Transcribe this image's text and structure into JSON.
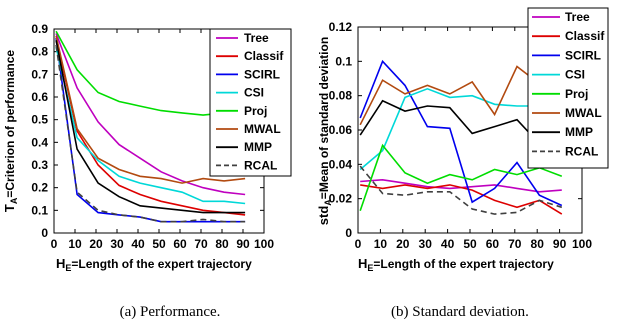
{
  "captions": [
    "(a) Performance.",
    "(b) Standard deviation."
  ],
  "chart_data": [
    {
      "type": "line",
      "ylabel_main": "T",
      "ylabel_sub": "A",
      "ylabel_rest": "=Criterion of performance",
      "xlabel_main": "H",
      "xlabel_sub": "E",
      "xlabel_rest": "=Length of the expert trajectory",
      "xlim": [
        0,
        100
      ],
      "ylim": [
        0,
        0.9
      ],
      "xticks": [
        "0",
        "10",
        "20",
        "30",
        "40",
        "50",
        "60",
        "70",
        "80",
        "90",
        "100"
      ],
      "yticks": [
        "0",
        "0.1",
        "0.2",
        "0.3",
        "0.4",
        "0.5",
        "0.6",
        "0.7",
        "0.8",
        "0.9"
      ],
      "x": [
        1,
        11,
        21,
        31,
        41,
        51,
        61,
        71,
        81,
        91
      ],
      "series": [
        {
          "name": "Tree",
          "color": "#bf00bf",
          "dash": "",
          "values": [
            0.88,
            0.64,
            0.49,
            0.39,
            0.33,
            0.27,
            0.23,
            0.2,
            0.18,
            0.17
          ]
        },
        {
          "name": "Classif",
          "color": "#dd0000",
          "dash": "",
          "values": [
            0.86,
            0.45,
            0.3,
            0.21,
            0.17,
            0.14,
            0.12,
            0.1,
            0.09,
            0.08
          ]
        },
        {
          "name": "SCIRL",
          "color": "#0000ee",
          "dash": "",
          "values": [
            0.86,
            0.17,
            0.09,
            0.08,
            0.07,
            0.05,
            0.05,
            0.05,
            0.05,
            0.05
          ]
        },
        {
          "name": "CSI",
          "color": "#00d8d8",
          "dash": "",
          "values": [
            0.82,
            0.42,
            0.32,
            0.25,
            0.22,
            0.2,
            0.18,
            0.14,
            0.14,
            0.13
          ]
        },
        {
          "name": "Proj",
          "color": "#00dd00",
          "dash": "",
          "values": [
            0.89,
            0.72,
            0.62,
            0.58,
            0.56,
            0.54,
            0.53,
            0.52,
            0.53,
            0.55
          ]
        },
        {
          "name": "MWAL",
          "color": "#b24a10",
          "dash": "",
          "values": [
            0.87,
            0.46,
            0.33,
            0.28,
            0.25,
            0.24,
            0.22,
            0.24,
            0.23,
            0.24
          ]
        },
        {
          "name": "MMP",
          "color": "#000000",
          "dash": "",
          "values": [
            0.85,
            0.37,
            0.22,
            0.16,
            0.12,
            0.11,
            0.1,
            0.09,
            0.09,
            0.09
          ]
        },
        {
          "name": "RCAL",
          "color": "#404040",
          "dash": "6,4",
          "values": [
            0.83,
            0.18,
            0.1,
            0.08,
            0.07,
            0.05,
            0.05,
            0.06,
            0.05,
            0.05
          ]
        }
      ]
    },
    {
      "type": "line",
      "ylabel_main": "std",
      "ylabel_sub": "A",
      "ylabel_rest": "=Mean of standard deviation",
      "xlabel_main": "H",
      "xlabel_sub": "E",
      "xlabel_rest": "=Length of the expert trajectory",
      "xlim": [
        0,
        100
      ],
      "ylim": [
        0,
        0.12
      ],
      "xticks": [
        "0",
        "10",
        "20",
        "30",
        "40",
        "50",
        "60",
        "70",
        "80",
        "90",
        "100"
      ],
      "yticks": [
        "0",
        "0.02",
        "0.04",
        "0.06",
        "0.08",
        "0.1",
        "0.12"
      ],
      "x": [
        1,
        11,
        21,
        31,
        41,
        51,
        61,
        71,
        81,
        91
      ],
      "series": [
        {
          "name": "Tree",
          "color": "#bf00bf",
          "dash": "",
          "values": [
            0.03,
            0.031,
            0.029,
            0.027,
            0.026,
            0.027,
            0.028,
            0.026,
            0.024,
            0.025
          ]
        },
        {
          "name": "Classif",
          "color": "#dd0000",
          "dash": "",
          "values": [
            0.028,
            0.026,
            0.028,
            0.026,
            0.028,
            0.025,
            0.019,
            0.015,
            0.019,
            0.011
          ]
        },
        {
          "name": "SCIRL",
          "color": "#0000ee",
          "dash": "",
          "values": [
            0.067,
            0.1,
            0.086,
            0.062,
            0.061,
            0.018,
            0.026,
            0.041,
            0.022,
            0.016
          ]
        },
        {
          "name": "CSI",
          "color": "#00d8d8",
          "dash": "",
          "values": [
            0.037,
            0.048,
            0.079,
            0.084,
            0.079,
            0.08,
            0.075,
            0.074,
            0.074,
            0.073
          ]
        },
        {
          "name": "Proj",
          "color": "#00dd00",
          "dash": "",
          "values": [
            0.013,
            0.051,
            0.035,
            0.029,
            0.034,
            0.031,
            0.037,
            0.034,
            0.038,
            0.033
          ]
        },
        {
          "name": "MWAL",
          "color": "#b24a10",
          "dash": "",
          "values": [
            0.063,
            0.089,
            0.081,
            0.086,
            0.081,
            0.088,
            0.069,
            0.097,
            0.087,
            0.085
          ]
        },
        {
          "name": "MMP",
          "color": "#000000",
          "dash": "",
          "values": [
            0.057,
            0.077,
            0.071,
            0.074,
            0.073,
            0.058,
            0.062,
            0.066,
            0.052,
            0.06
          ]
        },
        {
          "name": "RCAL",
          "color": "#404040",
          "dash": "6,4",
          "values": [
            0.039,
            0.023,
            0.022,
            0.024,
            0.024,
            0.014,
            0.011,
            0.012,
            0.019,
            0.015
          ]
        }
      ]
    }
  ]
}
